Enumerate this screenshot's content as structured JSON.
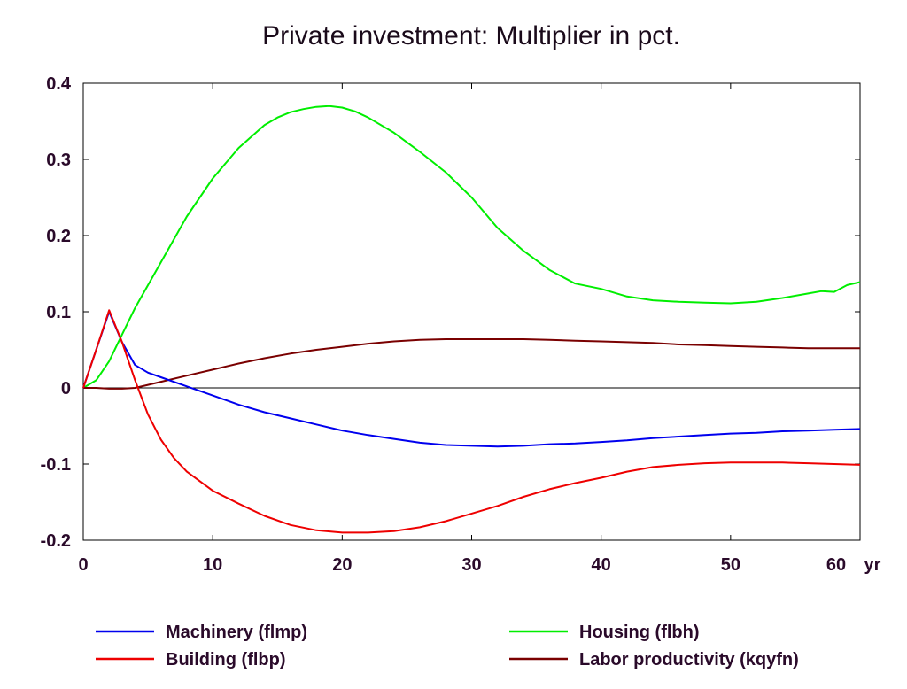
{
  "chart_data": {
    "type": "line",
    "title": "Private investment: Multiplier in pct.",
    "x_unit": "yr",
    "xlim": [
      0,
      60
    ],
    "ylim": [
      -0.2,
      0.4
    ],
    "x_ticks": [
      "0",
      "10",
      "20",
      "30",
      "40",
      "50",
      "60"
    ],
    "y_ticks": [
      "0.4",
      "0.3",
      "0.2",
      "0.1",
      "0",
      "-0.1",
      "-0.2"
    ],
    "grid": false,
    "legend_position": "bottom",
    "series": [
      {
        "name": "Machinery (flmp)",
        "color": "#0000ee",
        "x": [
          0,
          1,
          2,
          3,
          4,
          5,
          6,
          8,
          10,
          12,
          14,
          16,
          18,
          20,
          22,
          24,
          26,
          28,
          30,
          32,
          34,
          36,
          38,
          40,
          42,
          44,
          46,
          48,
          50,
          52,
          54,
          56,
          58,
          60
        ],
        "y": [
          0,
          0.05,
          0.1,
          0.06,
          0.03,
          0.02,
          0.014,
          0.002,
          -0.01,
          -0.022,
          -0.032,
          -0.04,
          -0.048,
          -0.056,
          -0.062,
          -0.067,
          -0.072,
          -0.075,
          -0.076,
          -0.077,
          -0.076,
          -0.074,
          -0.073,
          -0.071,
          -0.069,
          -0.066,
          -0.064,
          -0.062,
          -0.06,
          -0.059,
          -0.057,
          -0.056,
          -0.055,
          -0.054
        ]
      },
      {
        "name": "Housing (flbh)",
        "color": "#00ee00",
        "x": [
          0,
          1,
          2,
          3,
          4,
          6,
          8,
          10,
          12,
          14,
          15,
          16,
          17,
          18,
          19,
          20,
          21,
          22,
          24,
          26,
          28,
          30,
          32,
          34,
          36,
          38,
          40,
          42,
          44,
          46,
          48,
          50,
          52,
          54,
          56,
          57,
          58,
          59,
          60
        ],
        "y": [
          0,
          0.01,
          0.035,
          0.07,
          0.105,
          0.165,
          0.225,
          0.275,
          0.315,
          0.345,
          0.355,
          0.362,
          0.366,
          0.369,
          0.37,
          0.368,
          0.363,
          0.355,
          0.335,
          0.31,
          0.283,
          0.25,
          0.21,
          0.18,
          0.155,
          0.137,
          0.13,
          0.12,
          0.115,
          0.113,
          0.112,
          0.111,
          0.113,
          0.118,
          0.124,
          0.127,
          0.126,
          0.135,
          0.139
        ]
      },
      {
        "name": "Building (flbp)",
        "color": "#ee0000",
        "x": [
          0,
          1,
          2,
          3,
          4,
          5,
          6,
          7,
          8,
          10,
          12,
          14,
          16,
          18,
          20,
          22,
          24,
          26,
          28,
          30,
          32,
          34,
          36,
          38,
          40,
          42,
          44,
          46,
          48,
          50,
          52,
          54,
          56,
          58,
          60
        ],
        "y": [
          0,
          0.05,
          0.102,
          0.06,
          0.01,
          -0.035,
          -0.068,
          -0.092,
          -0.11,
          -0.135,
          -0.152,
          -0.168,
          -0.18,
          -0.187,
          -0.19,
          -0.19,
          -0.188,
          -0.183,
          -0.175,
          -0.165,
          -0.155,
          -0.143,
          -0.133,
          -0.125,
          -0.118,
          -0.11,
          -0.104,
          -0.101,
          -0.099,
          -0.098,
          -0.098,
          -0.098,
          -0.099,
          -0.1,
          -0.101
        ]
      },
      {
        "name": "Labor productivity (kqyfn)",
        "color": "#7a0000",
        "x": [
          0,
          1,
          2,
          3,
          4,
          5,
          6,
          8,
          10,
          12,
          14,
          16,
          18,
          20,
          22,
          24,
          26,
          28,
          30,
          32,
          34,
          36,
          38,
          40,
          42,
          44,
          46,
          48,
          50,
          52,
          54,
          56,
          58,
          60
        ],
        "y": [
          0,
          0.0,
          -0.001,
          -0.001,
          0.0,
          0.004,
          0.008,
          0.016,
          0.024,
          0.032,
          0.039,
          0.045,
          0.05,
          0.054,
          0.058,
          0.061,
          0.063,
          0.064,
          0.064,
          0.064,
          0.064,
          0.063,
          0.062,
          0.061,
          0.06,
          0.059,
          0.057,
          0.056,
          0.055,
          0.054,
          0.053,
          0.052,
          0.052,
          0.052
        ]
      }
    ]
  }
}
